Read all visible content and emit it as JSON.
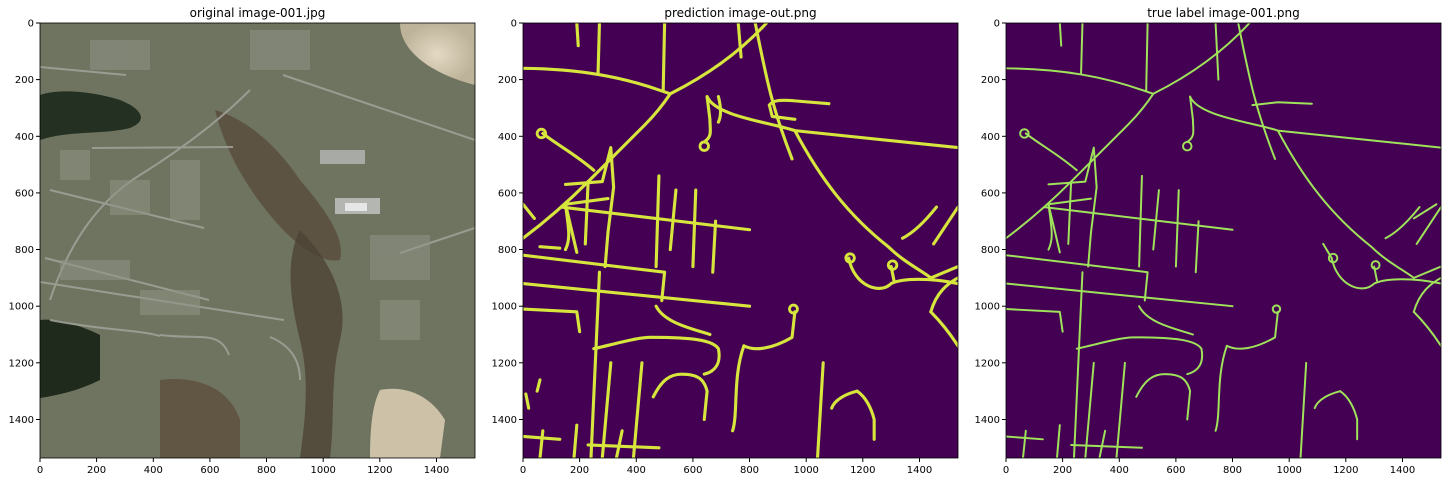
{
  "colors": {
    "mask_background": "#440154",
    "road": "#d7e63c",
    "true_road": "#9fe35a",
    "photo_dark_forest": "#2f3524",
    "photo_sand": "#d8cdb5",
    "photo_residential": "#6b6f5a"
  },
  "chart_data": [
    {
      "type": "image",
      "title": "original image-001.jpg",
      "xticks": [
        "0",
        "200",
        "400",
        "600",
        "800",
        "1000",
        "1200",
        "1400"
      ],
      "yticks": [
        "0",
        "200",
        "400",
        "600",
        "800",
        "1000",
        "1200",
        "1400"
      ],
      "xlim": [
        0,
        1536
      ],
      "ylim": [
        1536,
        0
      ]
    },
    {
      "type": "image",
      "title": "prediction image-out.png",
      "xticks": [
        "0",
        "200",
        "400",
        "600",
        "800",
        "1000",
        "1200",
        "1400"
      ],
      "yticks": [
        "0",
        "200",
        "400",
        "600",
        "800",
        "1000",
        "1200",
        "1400"
      ],
      "xlim": [
        0,
        1536
      ],
      "ylim": [
        1536,
        0
      ]
    },
    {
      "type": "image",
      "title": "true label image-001.png",
      "xticks": [
        "0",
        "200",
        "400",
        "600",
        "800",
        "1000",
        "1200",
        "1400"
      ],
      "yticks": [
        "0",
        "200",
        "400",
        "600",
        "800",
        "1000",
        "1200",
        "1400"
      ],
      "xlim": [
        0,
        1536
      ],
      "ylim": [
        1536,
        0
      ]
    }
  ]
}
